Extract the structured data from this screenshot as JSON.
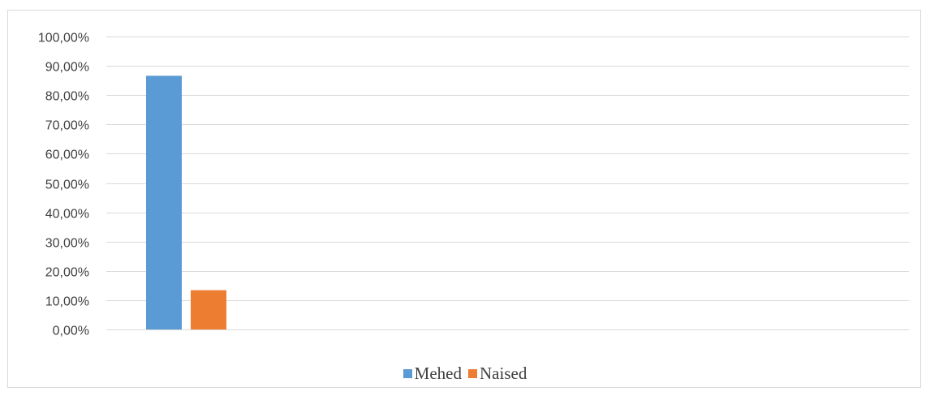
{
  "chart_data": {
    "type": "bar",
    "categories": [
      ""
    ],
    "series": [
      {
        "name": "Mehed",
        "values": [
          0.866
        ],
        "color": "#5b9bd5"
      },
      {
        "name": "Naised",
        "values": [
          0.134
        ],
        "color": "#ed7d31"
      }
    ],
    "ylim": [
      0,
      1
    ],
    "yticks": [
      {
        "value": 0,
        "label": "0,00%"
      },
      {
        "value": 0.1,
        "label": "10,00%"
      },
      {
        "value": 0.2,
        "label": "20,00%"
      },
      {
        "value": 0.3,
        "label": "30,00%"
      },
      {
        "value": 0.4,
        "label": "40,00%"
      },
      {
        "value": 0.5,
        "label": "50,00%"
      },
      {
        "value": 0.6,
        "label": "60,00%"
      },
      {
        "value": 0.7,
        "label": "70,00%"
      },
      {
        "value": 0.8,
        "label": "80,00%"
      },
      {
        "value": 0.9,
        "label": "90,00%"
      },
      {
        "value": 1.0,
        "label": "100,00%"
      }
    ],
    "grid": true,
    "legend": "bottom"
  }
}
